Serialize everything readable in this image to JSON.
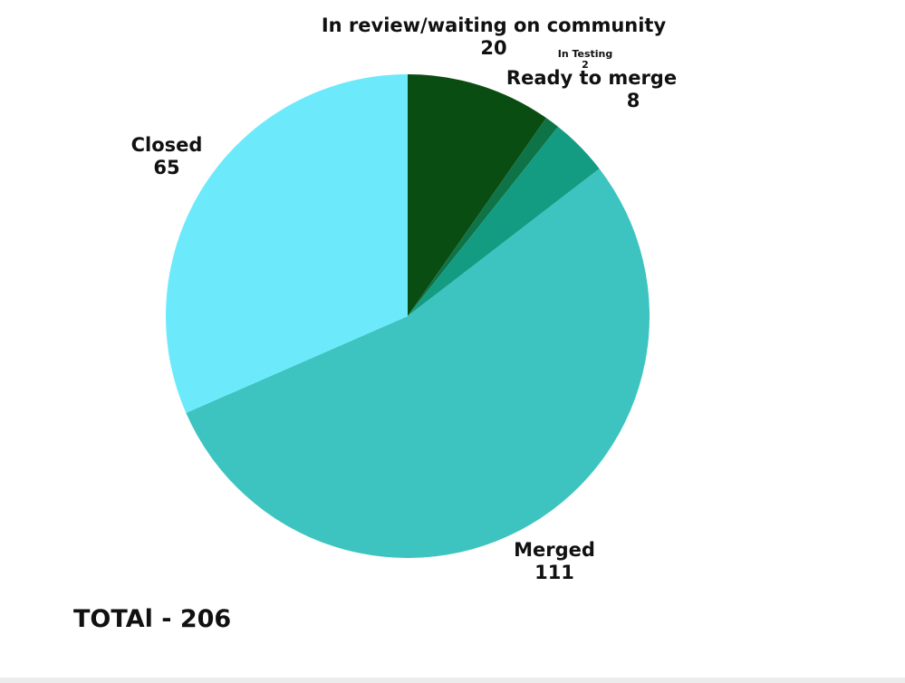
{
  "chart_data": {
    "type": "pie",
    "slices": [
      {
        "label": "In review/waiting on community",
        "value": 20,
        "color": "#0a4d12"
      },
      {
        "label": "In Testing",
        "value": 2,
        "color": "#0e7347"
      },
      {
        "label": "Ready to merge",
        "value": 8,
        "color": "#149c82"
      },
      {
        "label": "Merged",
        "value": 111,
        "color": "#3dc4c0"
      },
      {
        "label": "Closed",
        "value": 65,
        "color": "#6ceafc"
      }
    ],
    "start_angle_deg": 0,
    "direction": "clockwise",
    "total_label": "TOTAl - 206"
  }
}
